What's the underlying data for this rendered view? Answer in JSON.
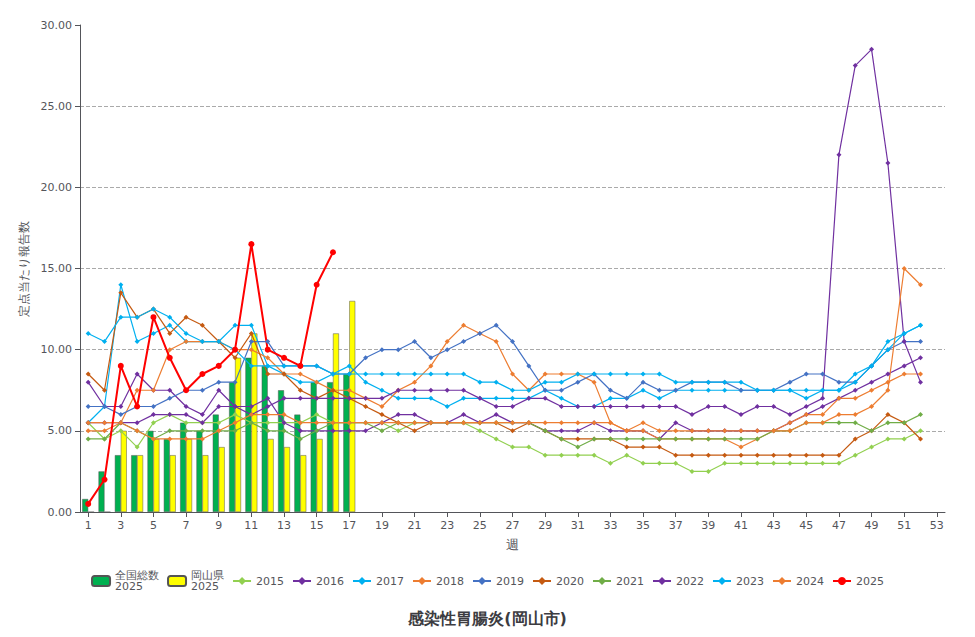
{
  "chart_data": {
    "type": "line",
    "title": "感染性胃腸炎(岡山市)",
    "xlabel": "週",
    "ylabel": "定点当たり報告数",
    "x": [
      1,
      2,
      3,
      4,
      5,
      6,
      7,
      8,
      9,
      10,
      11,
      12,
      13,
      14,
      15,
      16,
      17,
      18,
      19,
      20,
      21,
      22,
      23,
      24,
      25,
      26,
      27,
      28,
      29,
      30,
      31,
      32,
      33,
      34,
      35,
      36,
      37,
      38,
      39,
      40,
      41,
      42,
      43,
      44,
      45,
      46,
      47,
      48,
      49,
      50,
      51,
      52,
      53
    ],
    "xlim": [
      0.5,
      53.5
    ],
    "xticks": [
      1,
      3,
      5,
      7,
      9,
      11,
      13,
      15,
      17,
      19,
      21,
      23,
      25,
      27,
      29,
      31,
      33,
      35,
      37,
      39,
      41,
      43,
      45,
      47,
      49,
      51,
      53
    ],
    "ylim": [
      0,
      30.0
    ],
    "yticks": [
      {
        "value": 0.0,
        "label": "0.00"
      },
      {
        "value": 5.0,
        "label": "5.00"
      },
      {
        "value": 10.0,
        "label": "10.00"
      },
      {
        "value": 15.0,
        "label": "15.00"
      },
      {
        "value": 20.0,
        "label": "20.00"
      },
      {
        "value": 25.0,
        "label": "25.00"
      },
      {
        "value": 30.0,
        "label": "30.00"
      }
    ],
    "grid": true,
    "legend": "bottom",
    "series": [
      {
        "name": "全国総数\n2025",
        "type": "bar",
        "color": "#00b050",
        "values": [
          0.8,
          2.5,
          3.5,
          3.5,
          5.0,
          4.5,
          5.5,
          5.0,
          6.0,
          8.0,
          9.5,
          9.0,
          7.5,
          6.0,
          8.0,
          8.0,
          8.5,
          null,
          null,
          null,
          null,
          null,
          null,
          null,
          null,
          null,
          null,
          null,
          null,
          null,
          null,
          null,
          null,
          null,
          null,
          null,
          null,
          null,
          null,
          null,
          null,
          null,
          null,
          null,
          null,
          null,
          null,
          null,
          null,
          null,
          null,
          null,
          null
        ]
      },
      {
        "name": "岡山県\n2025",
        "type": "bar",
        "color": "#ffff00",
        "values": [
          0.0,
          0.0,
          5.0,
          3.5,
          4.5,
          3.5,
          4.5,
          3.5,
          4.0,
          9.5,
          11.0,
          4.5,
          4.0,
          3.5,
          4.5,
          11.0,
          13.0,
          null,
          null,
          null,
          null,
          null,
          null,
          null,
          null,
          null,
          null,
          null,
          null,
          null,
          null,
          null,
          null,
          null,
          null,
          null,
          null,
          null,
          null,
          null,
          null,
          null,
          null,
          null,
          null,
          null,
          null,
          null,
          null,
          null,
          null,
          null,
          null
        ]
      },
      {
        "name": "2015",
        "type": "line",
        "color": "#92d050",
        "marker": "diamond",
        "values": [
          5.5,
          4.5,
          5.0,
          4.0,
          5.5,
          6.0,
          5.5,
          5.5,
          5.5,
          6.0,
          5.5,
          5.5,
          5.5,
          5.5,
          6.0,
          5.5,
          5.5,
          5.5,
          5.5,
          5.0,
          5.5,
          5.5,
          5.5,
          5.5,
          5.0,
          4.5,
          4.0,
          4.0,
          3.5,
          3.5,
          3.5,
          3.5,
          3.0,
          3.5,
          3.0,
          3.0,
          3.0,
          2.5,
          2.5,
          3.0,
          3.0,
          3.0,
          3.0,
          3.0,
          3.0,
          3.0,
          3.0,
          3.5,
          4.0,
          4.5,
          4.5,
          5.0,
          null
        ]
      },
      {
        "name": "2016",
        "type": "line",
        "color": "#7030a0",
        "marker": "diamond",
        "values": [
          8.0,
          6.5,
          6.5,
          8.5,
          7.5,
          7.5,
          6.5,
          6.0,
          7.5,
          6.5,
          6.5,
          7.0,
          5.5,
          5.0,
          5.0,
          5.0,
          5.0,
          5.0,
          5.5,
          6.0,
          6.0,
          5.5,
          5.5,
          6.0,
          5.5,
          6.0,
          5.5,
          5.5,
          5.0,
          5.0,
          5.0,
          5.5,
          5.0,
          5.0,
          5.0,
          4.5,
          5.5,
          5.0,
          5.0,
          5.0,
          5.0,
          5.0,
          5.0,
          5.5,
          6.0,
          6.5,
          7.0,
          7.5,
          8.0,
          8.5,
          9.0,
          9.5,
          null
        ]
      },
      {
        "name": "2017",
        "type": "line",
        "color": "#00b0f0",
        "marker": "diamond",
        "values": [
          5.5,
          6.5,
          14.0,
          10.5,
          11.0,
          11.5,
          10.5,
          10.5,
          10.5,
          11.5,
          11.5,
          9.0,
          8.5,
          8.0,
          8.0,
          8.5,
          9.0,
          8.0,
          7.5,
          7.0,
          7.0,
          7.0,
          6.5,
          7.0,
          7.0,
          7.0,
          7.0,
          7.0,
          7.5,
          7.0,
          6.5,
          6.5,
          7.0,
          7.0,
          7.5,
          7.0,
          7.5,
          7.5,
          7.5,
          7.5,
          7.5,
          7.5,
          7.5,
          7.5,
          7.0,
          7.5,
          7.5,
          8.5,
          9.0,
          10.5,
          11.0,
          11.5,
          null
        ]
      },
      {
        "name": "2018",
        "type": "line",
        "color": "#ed7d31",
        "marker": "diamond",
        "values": [
          5.0,
          5.0,
          5.5,
          7.5,
          7.5,
          10.0,
          10.5,
          10.5,
          10.5,
          10.0,
          10.0,
          9.5,
          8.5,
          8.5,
          8.0,
          7.5,
          7.5,
          7.0,
          6.5,
          7.5,
          8.0,
          9.0,
          10.5,
          11.5,
          11.0,
          10.5,
          8.5,
          7.5,
          8.5,
          8.5,
          8.5,
          8.0,
          5.5,
          5.0,
          5.0,
          4.5,
          4.5,
          4.5,
          4.5,
          4.5,
          4.0,
          4.5,
          5.0,
          5.5,
          6.0,
          6.0,
          7.0,
          7.0,
          7.5,
          8.0,
          8.5,
          8.5,
          null
        ]
      },
      {
        "name": "2019",
        "type": "line",
        "color": "#4472c4",
        "marker": "diamond",
        "values": [
          6.5,
          6.5,
          6.0,
          6.5,
          6.5,
          7.0,
          7.5,
          7.5,
          8.0,
          8.0,
          10.5,
          10.5,
          9.0,
          9.0,
          9.0,
          8.5,
          8.5,
          9.5,
          10.0,
          10.0,
          10.5,
          9.5,
          10.0,
          10.5,
          11.0,
          11.5,
          10.5,
          9.0,
          7.5,
          7.5,
          8.0,
          8.5,
          7.5,
          7.0,
          8.0,
          7.5,
          7.5,
          8.0,
          8.0,
          8.0,
          7.5,
          7.5,
          7.5,
          8.0,
          8.5,
          8.5,
          8.0,
          8.0,
          9.0,
          10.0,
          10.5,
          10.5,
          null
        ]
      },
      {
        "name": "2020",
        "type": "line",
        "color": "#c55a11",
        "marker": "diamond",
        "values": [
          8.5,
          7.5,
          13.5,
          12.0,
          12.5,
          11.0,
          12.0,
          11.5,
          10.5,
          9.5,
          11.0,
          8.5,
          8.5,
          7.5,
          7.0,
          7.5,
          7.0,
          6.5,
          6.0,
          5.5,
          5.0,
          5.5,
          5.5,
          5.5,
          5.5,
          5.5,
          5.0,
          5.5,
          5.0,
          4.5,
          4.5,
          4.5,
          4.5,
          4.0,
          4.0,
          4.0,
          3.5,
          3.5,
          3.5,
          3.5,
          3.5,
          3.5,
          3.5,
          3.5,
          3.5,
          3.5,
          3.5,
          4.5,
          5.0,
          6.0,
          5.5,
          4.5,
          null
        ]
      },
      {
        "name": "2021",
        "type": "line",
        "color": "#70ad47",
        "marker": "diamond",
        "values": [
          4.5,
          4.5,
          5.5,
          5.0,
          4.5,
          5.0,
          5.0,
          5.0,
          5.0,
          5.0,
          5.5,
          5.0,
          5.0,
          4.5,
          5.0,
          5.5,
          5.5,
          5.5,
          5.0,
          5.5,
          5.5,
          5.5,
          5.5,
          5.5,
          5.5,
          5.5,
          5.5,
          5.5,
          5.0,
          4.5,
          4.0,
          4.5,
          4.5,
          4.5,
          4.5,
          4.5,
          4.5,
          4.5,
          4.5,
          4.5,
          4.5,
          4.5,
          5.0,
          5.0,
          5.5,
          5.5,
          5.5,
          5.5,
          5.0,
          5.5,
          5.5,
          6.0,
          null
        ]
      },
      {
        "name": "2022",
        "type": "line",
        "color": "#7030a0",
        "marker": "diamond",
        "values": [
          5.5,
          5.5,
          5.5,
          5.5,
          6.0,
          6.0,
          6.0,
          5.5,
          6.5,
          6.5,
          6.0,
          6.5,
          7.0,
          7.0,
          7.0,
          7.0,
          7.0,
          7.0,
          7.0,
          7.5,
          7.5,
          7.5,
          7.5,
          7.5,
          7.0,
          6.5,
          6.5,
          7.0,
          7.0,
          6.5,
          6.5,
          6.5,
          6.5,
          6.5,
          6.5,
          6.5,
          6.5,
          6.0,
          6.5,
          6.5,
          6.0,
          6.5,
          6.5,
          6.0,
          6.5,
          7.0,
          22.0,
          27.5,
          28.5,
          21.5,
          10.5,
          8.0,
          null
        ]
      },
      {
        "name": "2023",
        "type": "line",
        "color": "#00b0f0",
        "marker": "diamond",
        "values": [
          11.0,
          10.5,
          12.0,
          12.0,
          12.5,
          12.0,
          11.0,
          10.5,
          10.5,
          10.0,
          9.0,
          9.0,
          9.0,
          9.0,
          9.0,
          8.5,
          8.5,
          8.5,
          8.5,
          8.5,
          8.5,
          8.5,
          8.5,
          8.5,
          8.0,
          8.0,
          7.5,
          7.5,
          8.0,
          8.0,
          8.5,
          8.5,
          8.5,
          8.5,
          8.5,
          8.5,
          8.0,
          8.0,
          8.0,
          8.0,
          8.0,
          7.5,
          7.5,
          7.5,
          7.5,
          7.5,
          7.5,
          8.0,
          9.0,
          10.0,
          11.0,
          11.5,
          null
        ]
      },
      {
        "name": "2024",
        "type": "line",
        "color": "#ed7d31",
        "marker": "diamond",
        "values": [
          5.5,
          5.5,
          5.5,
          5.0,
          4.5,
          4.5,
          4.5,
          4.5,
          5.0,
          5.5,
          6.0,
          6.0,
          6.0,
          5.5,
          5.5,
          5.5,
          5.5,
          5.5,
          5.5,
          5.5,
          5.5,
          5.5,
          5.5,
          5.5,
          5.5,
          5.5,
          5.5,
          5.5,
          5.5,
          5.5,
          5.5,
          5.5,
          5.5,
          5.0,
          5.5,
          5.0,
          5.0,
          5.0,
          5.0,
          5.0,
          5.0,
          5.0,
          5.0,
          5.0,
          5.5,
          5.5,
          6.0,
          6.0,
          6.5,
          7.5,
          15.0,
          14.0,
          null
        ]
      },
      {
        "name": "2025",
        "type": "line",
        "color": "#ff0000",
        "marker": "circle",
        "values": [
          0.5,
          2.0,
          9.0,
          6.5,
          12.0,
          9.5,
          7.5,
          8.5,
          9.0,
          10.0,
          16.5,
          10.0,
          9.5,
          9.0,
          14.0,
          16.0,
          null,
          null,
          null,
          null,
          null,
          null,
          null,
          null,
          null,
          null,
          null,
          null,
          null,
          null,
          null,
          null,
          null,
          null,
          null,
          null,
          null,
          null,
          null,
          null,
          null,
          null,
          null,
          null,
          null,
          null,
          null,
          null,
          null,
          null,
          null,
          null,
          null
        ]
      }
    ]
  }
}
